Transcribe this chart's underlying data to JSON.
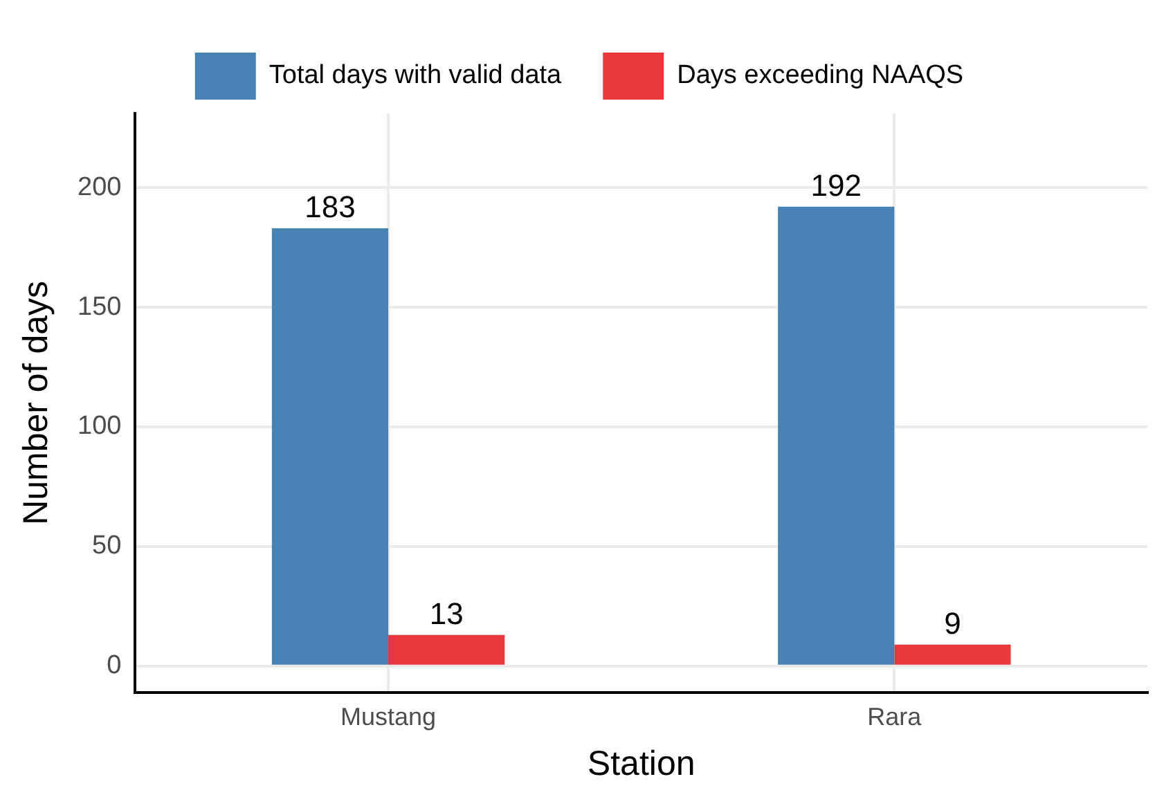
{
  "chart_data": {
    "type": "bar",
    "xlabel": "Station",
    "ylabel": "Number of days",
    "categories": [
      "Mustang",
      "Rara"
    ],
    "series": [
      {
        "name": "Total days with valid data",
        "color": "#4682b4",
        "values": [
          183,
          192
        ]
      },
      {
        "name": "Days exceeding NAAQS",
        "color": "#e8383b",
        "values": [
          13,
          9
        ]
      }
    ],
    "ylim": [
      -11,
      231
    ],
    "yticks": [
      0,
      50,
      100,
      150,
      200
    ],
    "grid": true,
    "legend": "top",
    "data_labels": true
  }
}
